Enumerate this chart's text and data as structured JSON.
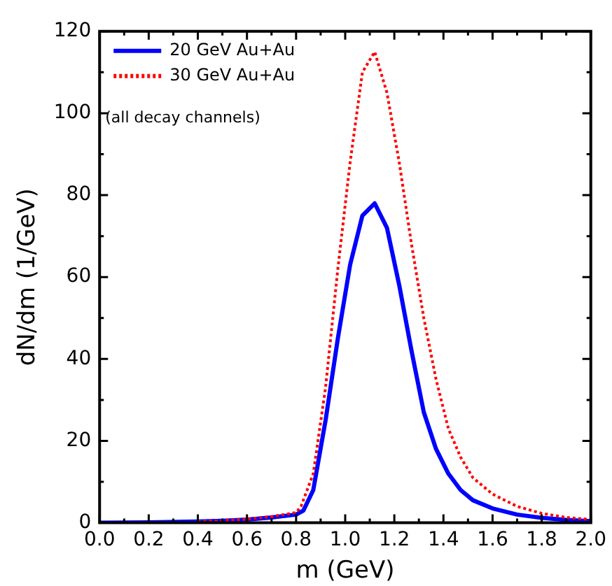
{
  "chart_data": {
    "type": "line",
    "xlabel": "m (GeV)",
    "ylabel": "dN/dm (1/GeV)",
    "annotations": [
      "(all decay channels)"
    ],
    "xlim": [
      0,
      2
    ],
    "ylim": [
      0,
      120
    ],
    "xticks": [
      {
        "value": 0,
        "label": "0.0"
      },
      {
        "value": 0.2,
        "label": "0.2"
      },
      {
        "value": 0.4,
        "label": "0.4"
      },
      {
        "value": 0.6,
        "label": "0.6"
      },
      {
        "value": 0.8,
        "label": "0.8"
      },
      {
        "value": 1,
        "label": "1.0"
      },
      {
        "value": 1.2,
        "label": "1.2"
      },
      {
        "value": 1.4,
        "label": "1.4"
      },
      {
        "value": 1.6,
        "label": "1.6"
      },
      {
        "value": 1.8,
        "label": "1.8"
      },
      {
        "value": 2,
        "label": "2.0"
      }
    ],
    "yticks": [
      0,
      20,
      40,
      60,
      80,
      100,
      120
    ],
    "grid": false,
    "legend": "top left",
    "marker": "none",
    "series": [
      {
        "name": "20 GeV Au+Au",
        "color": "#0000ff",
        "line_style": "solid",
        "x": [
          0,
          0.2,
          0.4,
          0.5,
          0.6,
          0.7,
          0.8,
          0.83,
          0.87,
          0.92,
          0.97,
          1.02,
          1.07,
          1.12,
          1.17,
          1.22,
          1.27,
          1.32,
          1.37,
          1.42,
          1.47,
          1.52,
          1.6,
          1.7,
          1.8,
          1.9,
          2.0
        ],
        "values": [
          0,
          0.1,
          0.3,
          0.5,
          0.8,
          1.3,
          2,
          3,
          8,
          25,
          45,
          63,
          75,
          78,
          72,
          58,
          42,
          27,
          18,
          12,
          8,
          5.5,
          3.5,
          2,
          1.2,
          0.7,
          0.4
        ]
      },
      {
        "name": "30 GeV Au+Au",
        "color": "#ff0000",
        "line_style": "dotted",
        "x": [
          0.4,
          0.5,
          0.6,
          0.7,
          0.8,
          0.82,
          0.87,
          0.92,
          0.97,
          1.02,
          1.07,
          1.12,
          1.17,
          1.22,
          1.27,
          1.32,
          1.37,
          1.42,
          1.47,
          1.52,
          1.6,
          1.7,
          1.8,
          1.9,
          2.0
        ],
        "values": [
          0.3,
          0.5,
          0.9,
          1.5,
          2.5,
          4,
          12,
          33,
          62,
          88,
          110,
          115,
          105,
          88,
          68,
          50,
          35,
          23,
          16,
          11,
          7,
          4,
          2.3,
          1.3,
          0.8
        ]
      }
    ]
  }
}
